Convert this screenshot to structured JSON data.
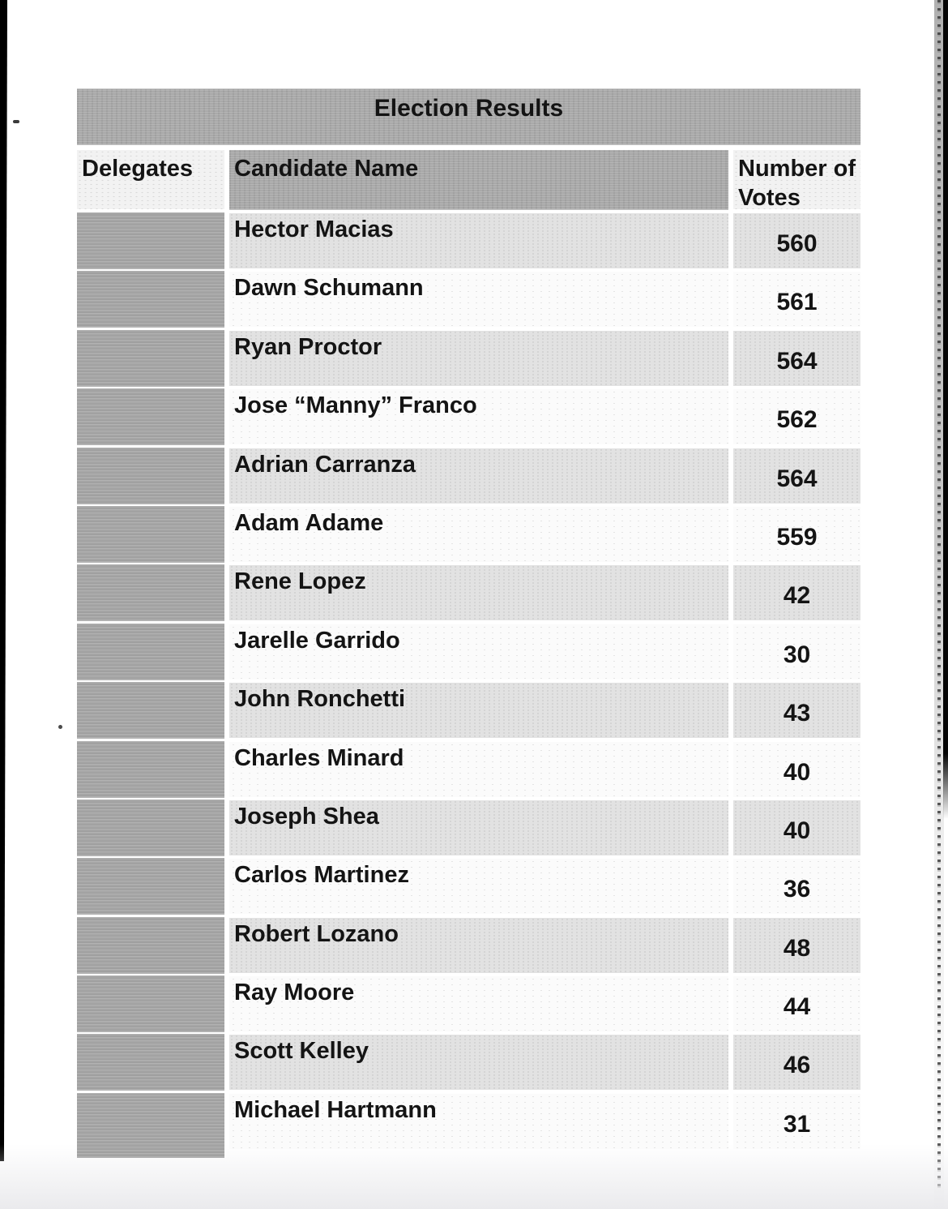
{
  "document": {
    "title": "Election Results",
    "columns": {
      "delegates": "Delegates",
      "candidate": "Candidate Name",
      "votes": "Number of Votes"
    },
    "rows": [
      {
        "candidate": "Hector Macias",
        "votes": "560"
      },
      {
        "candidate": "Dawn Schumann",
        "votes": "561"
      },
      {
        "candidate": "Ryan Proctor",
        "votes": "564"
      },
      {
        "candidate": "Jose “Manny” Franco",
        "votes": "562"
      },
      {
        "candidate": "Adrian Carranza",
        "votes": "564"
      },
      {
        "candidate": "Adam Adame",
        "votes": "559"
      },
      {
        "candidate": "Rene Lopez",
        "votes": "42"
      },
      {
        "candidate": "Jarelle Garrido",
        "votes": "30"
      },
      {
        "candidate": "John Ronchetti",
        "votes": "43"
      },
      {
        "candidate": "Charles Minard",
        "votes": "40"
      },
      {
        "candidate": "Joseph Shea",
        "votes": "40"
      },
      {
        "candidate": "Carlos Martinez",
        "votes": "36"
      },
      {
        "candidate": "Robert Lozano",
        "votes": "48"
      },
      {
        "candidate": "Ray Moore",
        "votes": "44"
      },
      {
        "candidate": "Scott Kelley",
        "votes": "46"
      },
      {
        "candidate": "Michael Hartmann",
        "votes": "31"
      }
    ],
    "colors": {
      "table_gray": "#a9a9a9",
      "row_light": "#e2e2e2",
      "row_white": "#fbfbfb",
      "scan_edge_black": "#050505",
      "text": "#141414"
    }
  }
}
